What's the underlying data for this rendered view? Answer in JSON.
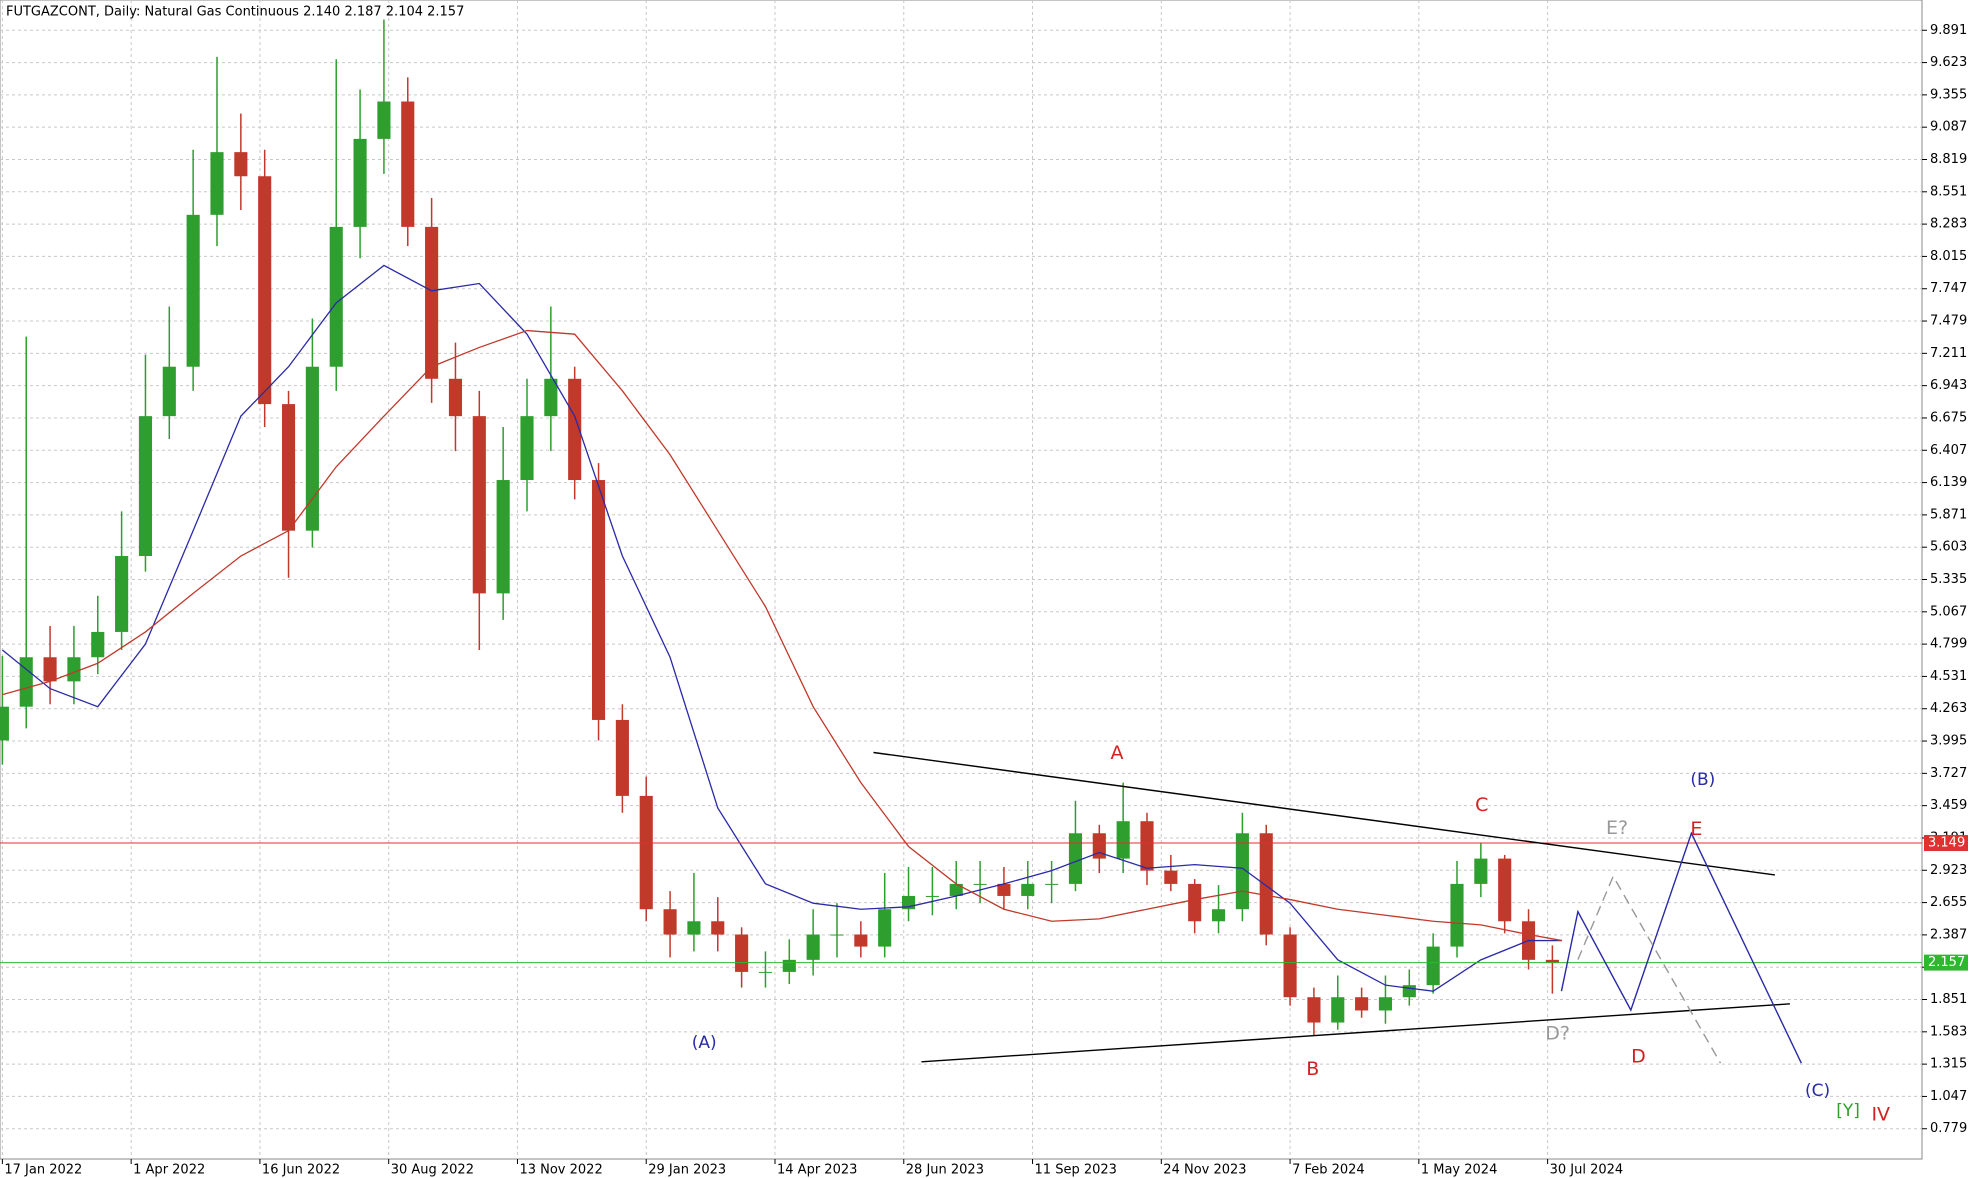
{
  "chart_data": {
    "type": "candlestick",
    "title": "FUTGAZCONT, Daily:  Natural Gas Continuous  2.140 2.187 2.104 2.157",
    "xlim": [
      -1,
      805
    ],
    "ylim": [
      0.528,
      10.142
    ],
    "xticks": [
      {
        "value": 0,
        "label": "17 Jan 2022"
      },
      {
        "value": 54,
        "label": "1 Apr 2022"
      },
      {
        "value": 108,
        "label": "16 Jun 2022"
      },
      {
        "value": 162,
        "label": "30 Aug 2022"
      },
      {
        "value": 216,
        "label": "13 Nov 2022"
      },
      {
        "value": 270,
        "label": "29 Jan 2023"
      },
      {
        "value": 324,
        "label": "14 Apr 2023"
      },
      {
        "value": 378,
        "label": "28 Jun 2023"
      },
      {
        "value": 432,
        "label": "11 Sep 2023"
      },
      {
        "value": 486,
        "label": "24 Nov 2023"
      },
      {
        "value": 540,
        "label": "7 Feb 2024"
      },
      {
        "value": 594,
        "label": "1 May 2024"
      },
      {
        "value": 648,
        "label": "30 Jul 2024"
      }
    ],
    "yticks": [
      9.891,
      9.623,
      9.355,
      9.087,
      8.819,
      8.551,
      8.283,
      8.015,
      7.747,
      7.479,
      7.211,
      6.943,
      6.675,
      6.407,
      6.139,
      5.871,
      5.603,
      5.335,
      5.067,
      4.799,
      4.531,
      4.263,
      3.995,
      3.727,
      3.459,
      3.191,
      2.923,
      2.655,
      2.387,
      2.119,
      1.851,
      1.583,
      1.315,
      1.047,
      0.779
    ],
    "grid": true,
    "up_color": "#2e9e2e",
    "down_color": "#c0392b",
    "x": [
      0,
      10,
      20,
      30,
      40,
      50,
      60,
      70,
      80,
      90,
      100,
      110,
      120,
      130,
      140,
      150,
      160,
      170,
      180,
      190,
      200,
      210,
      220,
      230,
      240,
      250,
      260,
      270,
      280,
      290,
      300,
      310,
      320,
      330,
      340,
      350,
      360,
      370,
      380,
      390,
      400,
      410,
      420,
      430,
      440,
      450,
      460,
      470,
      480,
      490,
      500,
      510,
      520,
      530,
      540,
      550,
      560,
      570,
      580,
      590,
      600,
      610,
      620,
      630,
      640,
      650
    ],
    "open": [
      4.0,
      4.28,
      4.69,
      4.49,
      4.69,
      4.9,
      5.53,
      6.69,
      7.1,
      8.36,
      8.88,
      8.68,
      6.79,
      5.74,
      7.1,
      8.26,
      8.99,
      9.3,
      8.26,
      7.0,
      6.69,
      5.22,
      6.16,
      6.69,
      7.0,
      6.16,
      4.17,
      3.54,
      2.6,
      2.39,
      2.5,
      2.39,
      2.08,
      2.08,
      2.18,
      2.39,
      2.39,
      2.29,
      2.6,
      2.71,
      2.71,
      2.81,
      2.81,
      2.71,
      2.81,
      2.81,
      3.23,
      3.02,
      3.33,
      2.92,
      2.81,
      2.5,
      2.6,
      3.23,
      2.39,
      1.87,
      1.66,
      1.87,
      1.76,
      1.87,
      1.97,
      2.29,
      2.81,
      3.02,
      2.5,
      2.18
    ],
    "high": [
      4.7,
      7.35,
      4.95,
      4.95,
      5.2,
      5.9,
      7.2,
      7.6,
      8.9,
      9.67,
      9.2,
      8.9,
      6.9,
      7.5,
      9.65,
      9.4,
      9.98,
      9.5,
      8.5,
      7.3,
      6.9,
      6.6,
      7.0,
      7.6,
      7.1,
      6.3,
      4.3,
      3.7,
      2.75,
      2.9,
      2.7,
      2.45,
      2.25,
      2.35,
      2.6,
      2.65,
      2.5,
      2.9,
      2.95,
      2.95,
      3.0,
      3.0,
      2.95,
      3.0,
      3.0,
      3.5,
      3.3,
      3.65,
      3.4,
      3.05,
      2.85,
      2.8,
      3.4,
      3.3,
      2.45,
      1.95,
      2.05,
      1.95,
      2.05,
      2.1,
      2.4,
      3.0,
      3.15,
      3.05,
      2.6,
      2.3
    ],
    "low": [
      3.8,
      4.1,
      4.3,
      4.3,
      4.55,
      4.75,
      5.4,
      6.5,
      6.9,
      8.1,
      8.4,
      6.6,
      5.35,
      5.6,
      6.9,
      8.0,
      8.7,
      8.1,
      6.8,
      6.4,
      4.75,
      5.0,
      5.9,
      6.4,
      6.0,
      4.0,
      3.4,
      2.5,
      2.2,
      2.25,
      2.25,
      1.95,
      1.95,
      1.98,
      2.05,
      2.2,
      2.2,
      2.2,
      2.5,
      2.55,
      2.6,
      2.65,
      2.6,
      2.6,
      2.65,
      2.75,
      2.9,
      2.9,
      2.8,
      2.75,
      2.4,
      2.4,
      2.5,
      2.3,
      1.8,
      1.55,
      1.6,
      1.7,
      1.65,
      1.8,
      1.9,
      2.2,
      2.7,
      2.4,
      2.1,
      1.9
    ],
    "close": [
      4.28,
      4.69,
      4.49,
      4.69,
      4.9,
      5.53,
      6.69,
      7.1,
      8.36,
      8.88,
      8.68,
      6.79,
      5.74,
      7.1,
      8.26,
      8.99,
      9.3,
      8.26,
      7.0,
      6.69,
      5.22,
      6.16,
      6.69,
      7.0,
      6.16,
      4.17,
      3.54,
      2.6,
      2.39,
      2.5,
      2.39,
      2.08,
      2.08,
      2.18,
      2.39,
      2.39,
      2.29,
      2.6,
      2.71,
      2.71,
      2.81,
      2.81,
      2.71,
      2.81,
      2.81,
      3.23,
      3.02,
      3.33,
      2.92,
      2.81,
      2.5,
      2.6,
      3.23,
      2.39,
      1.87,
      1.66,
      1.87,
      1.76,
      1.87,
      1.97,
      2.29,
      2.81,
      3.02,
      2.5,
      2.18,
      2.157
    ],
    "moving_averages": [
      {
        "color": "#2a2aa8",
        "x": [
          0,
          20,
          40,
          60,
          80,
          100,
          120,
          140,
          160,
          180,
          200,
          220,
          240,
          260,
          280,
          300,
          320,
          340,
          360,
          380,
          400,
          420,
          440,
          460,
          480,
          500,
          520,
          540,
          560,
          580,
          600,
          620,
          640,
          654
        ],
        "values": [
          4.75,
          4.43,
          4.28,
          4.8,
          5.74,
          6.69,
          7.1,
          7.63,
          7.94,
          7.73,
          7.79,
          7.37,
          6.69,
          5.53,
          4.69,
          3.44,
          2.81,
          2.65,
          2.6,
          2.62,
          2.71,
          2.81,
          2.92,
          3.07,
          2.94,
          2.97,
          2.94,
          2.65,
          2.18,
          1.97,
          1.92,
          2.18,
          2.34,
          2.34
        ]
      },
      {
        "color": "#c0392b",
        "x": [
          0,
          20,
          40,
          60,
          80,
          100,
          120,
          140,
          160,
          180,
          200,
          220,
          240,
          260,
          280,
          300,
          320,
          340,
          360,
          380,
          400,
          420,
          440,
          460,
          480,
          500,
          520,
          540,
          560,
          580,
          600,
          620,
          640,
          654
        ],
        "values": [
          4.38,
          4.49,
          4.64,
          4.9,
          5.22,
          5.53,
          5.74,
          6.27,
          6.69,
          7.1,
          7.26,
          7.4,
          7.37,
          6.9,
          6.37,
          5.74,
          5.11,
          4.28,
          3.65,
          3.12,
          2.81,
          2.6,
          2.5,
          2.52,
          2.6,
          2.68,
          2.75,
          2.68,
          2.6,
          2.55,
          2.5,
          2.47,
          2.39,
          2.34
        ]
      }
    ],
    "hlines": [
      {
        "value": 3.149,
        "color": "#e03030"
      },
      {
        "value": 2.157,
        "color": "#2eb82e"
      }
    ],
    "drawings": [
      {
        "color": "#000000",
        "dashed": false,
        "x": [
          365.3,
          743.3
        ],
        "y": [
          3.9,
          2.884
        ]
      },
      {
        "color": "#000000",
        "dashed": false,
        "x": [
          385.4,
          749.6
        ],
        "y": [
          1.334,
          1.815
        ]
      },
      {
        "color": "#2a2aa8",
        "dashed": false,
        "x": [
          653.8,
          660.7,
          682.9,
          708.3,
          754.4
        ],
        "y": [
          1.92,
          2.58,
          1.763,
          3.23,
          1.323
        ]
      },
      {
        "color": "#999999",
        "dashed": true,
        "x": [
          660.7,
          675.5,
          720.5
        ],
        "y": [
          2.182,
          2.873,
          1.323
        ]
      }
    ],
    "annotations": [
      {
        "text": "A",
        "x": 467.4,
        "y": 3.89,
        "color": "#d42020"
      },
      {
        "text": "C",
        "x": 620.4,
        "y": 3.46,
        "color": "#d42020"
      },
      {
        "text": "B",
        "x": 549.5,
        "y": 1.27,
        "color": "#d42020"
      },
      {
        "text": "D",
        "x": 686.1,
        "y": 1.375,
        "color": "#d42020"
      },
      {
        "text": "E",
        "x": 710.4,
        "y": 3.26,
        "color": "#d42020"
      },
      {
        "text": "E?",
        "x": 677.1,
        "y": 3.27,
        "color": "#999999"
      },
      {
        "text": "D?",
        "x": 652.2,
        "y": 1.564,
        "color": "#999999"
      },
      {
        "text": "(A)",
        "x": 294.3,
        "y": 1.49,
        "color": "#2a2aa8"
      },
      {
        "text": "(B)",
        "x": 713.1,
        "y": 3.67,
        "color": "#2a2aa8"
      },
      {
        "text": "(C)",
        "x": 761.2,
        "y": 1.093,
        "color": "#2a2aa8"
      },
      {
        "text": "[Y]",
        "x": 774.0,
        "y": 0.925,
        "color": "#2e9e2e"
      },
      {
        "text": "IV",
        "x": 787.7,
        "y": 0.894,
        "color": "#d42020"
      }
    ]
  }
}
